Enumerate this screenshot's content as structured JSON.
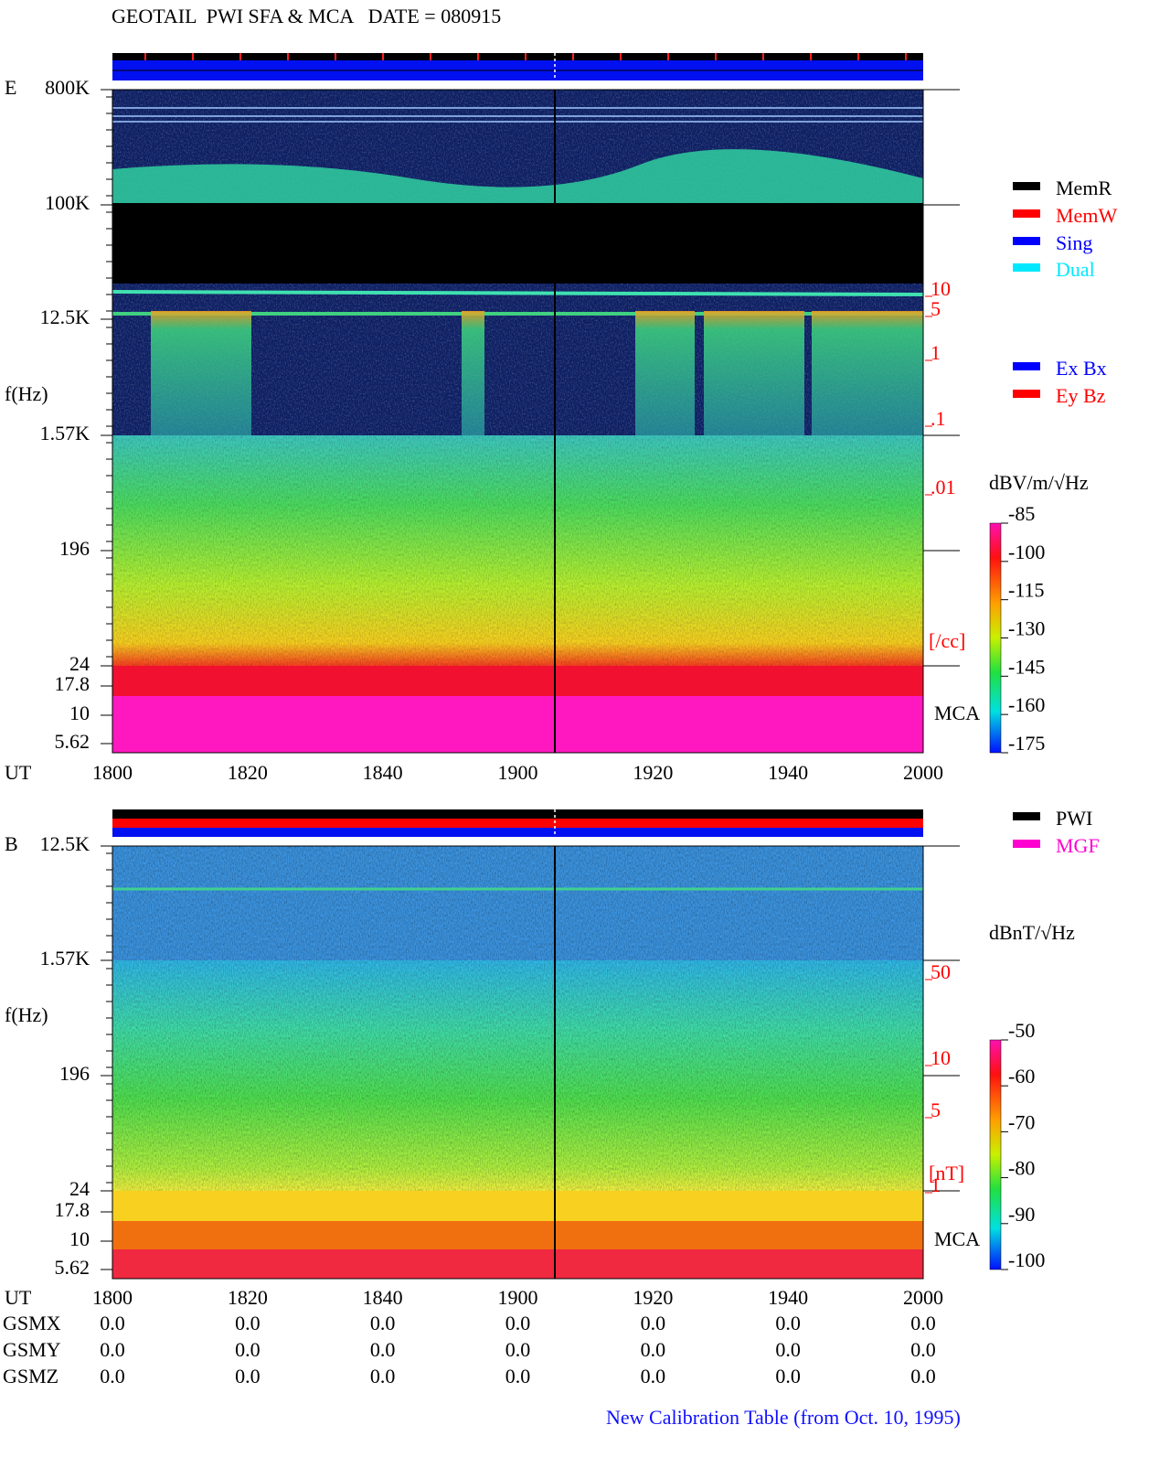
{
  "title": "GEOTAIL  PWI SFA & MCA   DATE = 080915",
  "panels": [
    {
      "label": "E",
      "y_axis_label": "f(Hz)",
      "freq_ticks": [
        "800K",
        "100K",
        "12.5K",
        "1.57K",
        "196",
        "24",
        "17.8",
        "10",
        "5.62"
      ],
      "x_axis_label": "UT",
      "time_ticks": [
        "1800",
        "1820",
        "1840",
        "1900",
        "1920",
        "1940",
        "2000"
      ],
      "density_ticks": [
        "10",
        "5",
        "1",
        ".1",
        ".01"
      ],
      "density_unit": "[/cc]",
      "mca_label": "MCA",
      "legend": [
        {
          "name": "MemR",
          "color": "#000000"
        },
        {
          "name": "MemW",
          "color": "#ff0000"
        },
        {
          "name": "Sing",
          "color": "#0000ff"
        },
        {
          "name": "Dual",
          "color": "#00e8ff"
        }
      ],
      "legend2": [
        {
          "name": "Ex Bx",
          "color": "#0000ff"
        },
        {
          "name": "Ey Bz",
          "color": "#ff0000"
        }
      ],
      "colorbar": {
        "label": "dBV/m/√Hz",
        "lim": [
          -175,
          -85
        ],
        "ticks": [
          -85,
          -100,
          -115,
          -130,
          -145,
          -160,
          -175
        ]
      }
    },
    {
      "label": "B",
      "y_axis_label": "f(Hz)",
      "freq_ticks": [
        "12.5K",
        "1.57K",
        "196",
        "24",
        "17.8",
        "10",
        "5.62"
      ],
      "x_axis_label": "UT",
      "time_ticks": [
        "1800",
        "1820",
        "1840",
        "1900",
        "1920",
        "1940",
        "2000"
      ],
      "density_ticks": [
        "50",
        "10",
        "5",
        "1"
      ],
      "density_unit": "[nT]",
      "mca_label": "MCA",
      "legend": [
        {
          "name": "PWI",
          "color": "#000000"
        },
        {
          "name": "MGF",
          "color": "#ff00d0"
        }
      ],
      "colorbar": {
        "label": "dBnT/√Hz",
        "lim": [
          -100,
          -50
        ],
        "ticks": [
          -50,
          -60,
          -70,
          -80,
          -90,
          -100
        ]
      }
    }
  ],
  "gsm": [
    {
      "name": "GSMX",
      "values": [
        "0.0",
        "0.0",
        "0.0",
        "0.0",
        "0.0",
        "0.0",
        "0.0"
      ]
    },
    {
      "name": "GSMY",
      "values": [
        "0.0",
        "0.0",
        "0.0",
        "0.0",
        "0.0",
        "0.0",
        "0.0"
      ]
    },
    {
      "name": "GSMZ",
      "values": [
        "0.0",
        "0.0",
        "0.0",
        "0.0",
        "0.0",
        "0.0",
        "0.0"
      ]
    }
  ],
  "footer": "New Calibration Table (from Oct. 10, 1995)"
}
